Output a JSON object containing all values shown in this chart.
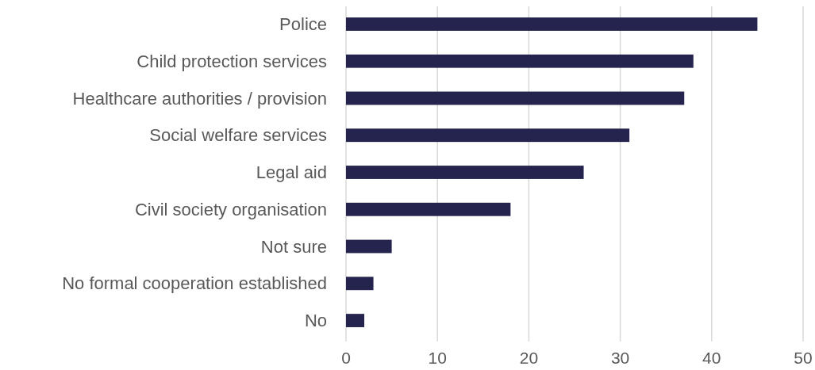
{
  "chart_data": {
    "type": "bar",
    "orientation": "horizontal",
    "categories": [
      "Police",
      "Child protection services",
      "Healthcare authorities / provision",
      "Social welfare services",
      "Legal aid",
      "Civil society organisation",
      "Not sure",
      "No formal cooperation established",
      "No"
    ],
    "values": [
      45,
      38,
      37,
      31,
      26,
      18,
      5,
      3,
      2
    ],
    "color": "#24244f",
    "xlim": [
      0,
      50
    ],
    "xticks": [
      0,
      10,
      20,
      30,
      40,
      50
    ],
    "grid": "x"
  }
}
